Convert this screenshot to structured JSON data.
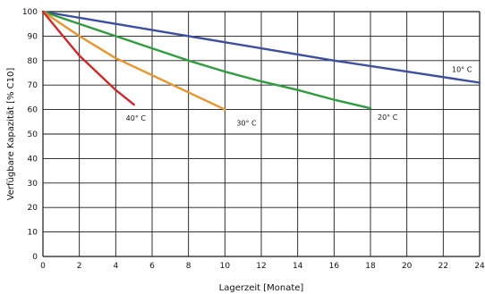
{
  "chart_data": {
    "type": "line",
    "title": "",
    "xlabel": "Lagerzeit [Monate]",
    "ylabel": "Verfügbare Kapazität [% C10]",
    "xlim": [
      0,
      24
    ],
    "ylim": [
      0,
      100
    ],
    "x_ticks": [
      "0",
      "2",
      "4",
      "6",
      "8",
      "10",
      "12",
      "14",
      "16",
      "18",
      "20",
      "22",
      "24"
    ],
    "y_ticks": [
      "0",
      "10",
      "20",
      "30",
      "40",
      "50",
      "60",
      "70",
      "80",
      "90",
      "100"
    ],
    "grid": true,
    "legend": "none",
    "series": [
      {
        "name": "10° C",
        "color": "#3d4f9e",
        "x": [
          0,
          4,
          8,
          12,
          16,
          20,
          24
        ],
        "y": [
          100,
          95,
          90,
          85,
          80,
          75.5,
          71
        ]
      },
      {
        "name": "20° C",
        "color": "#2f9c3f",
        "x": [
          0,
          2,
          4,
          6,
          8,
          10,
          12,
          14,
          16,
          18
        ],
        "y": [
          100,
          95,
          90,
          85,
          80,
          75.5,
          71.5,
          68,
          64,
          60.5
        ]
      },
      {
        "name": "30° C",
        "color": "#e8952e",
        "x": [
          0,
          2,
          4,
          6,
          8,
          10
        ],
        "y": [
          100,
          90,
          81,
          74,
          67,
          60
        ]
      },
      {
        "name": "40° C",
        "color": "#cc2a2a",
        "x": [
          0,
          1,
          2,
          3,
          4,
          5
        ],
        "y": [
          100,
          91,
          82,
          75,
          68,
          62
        ]
      }
    ]
  }
}
